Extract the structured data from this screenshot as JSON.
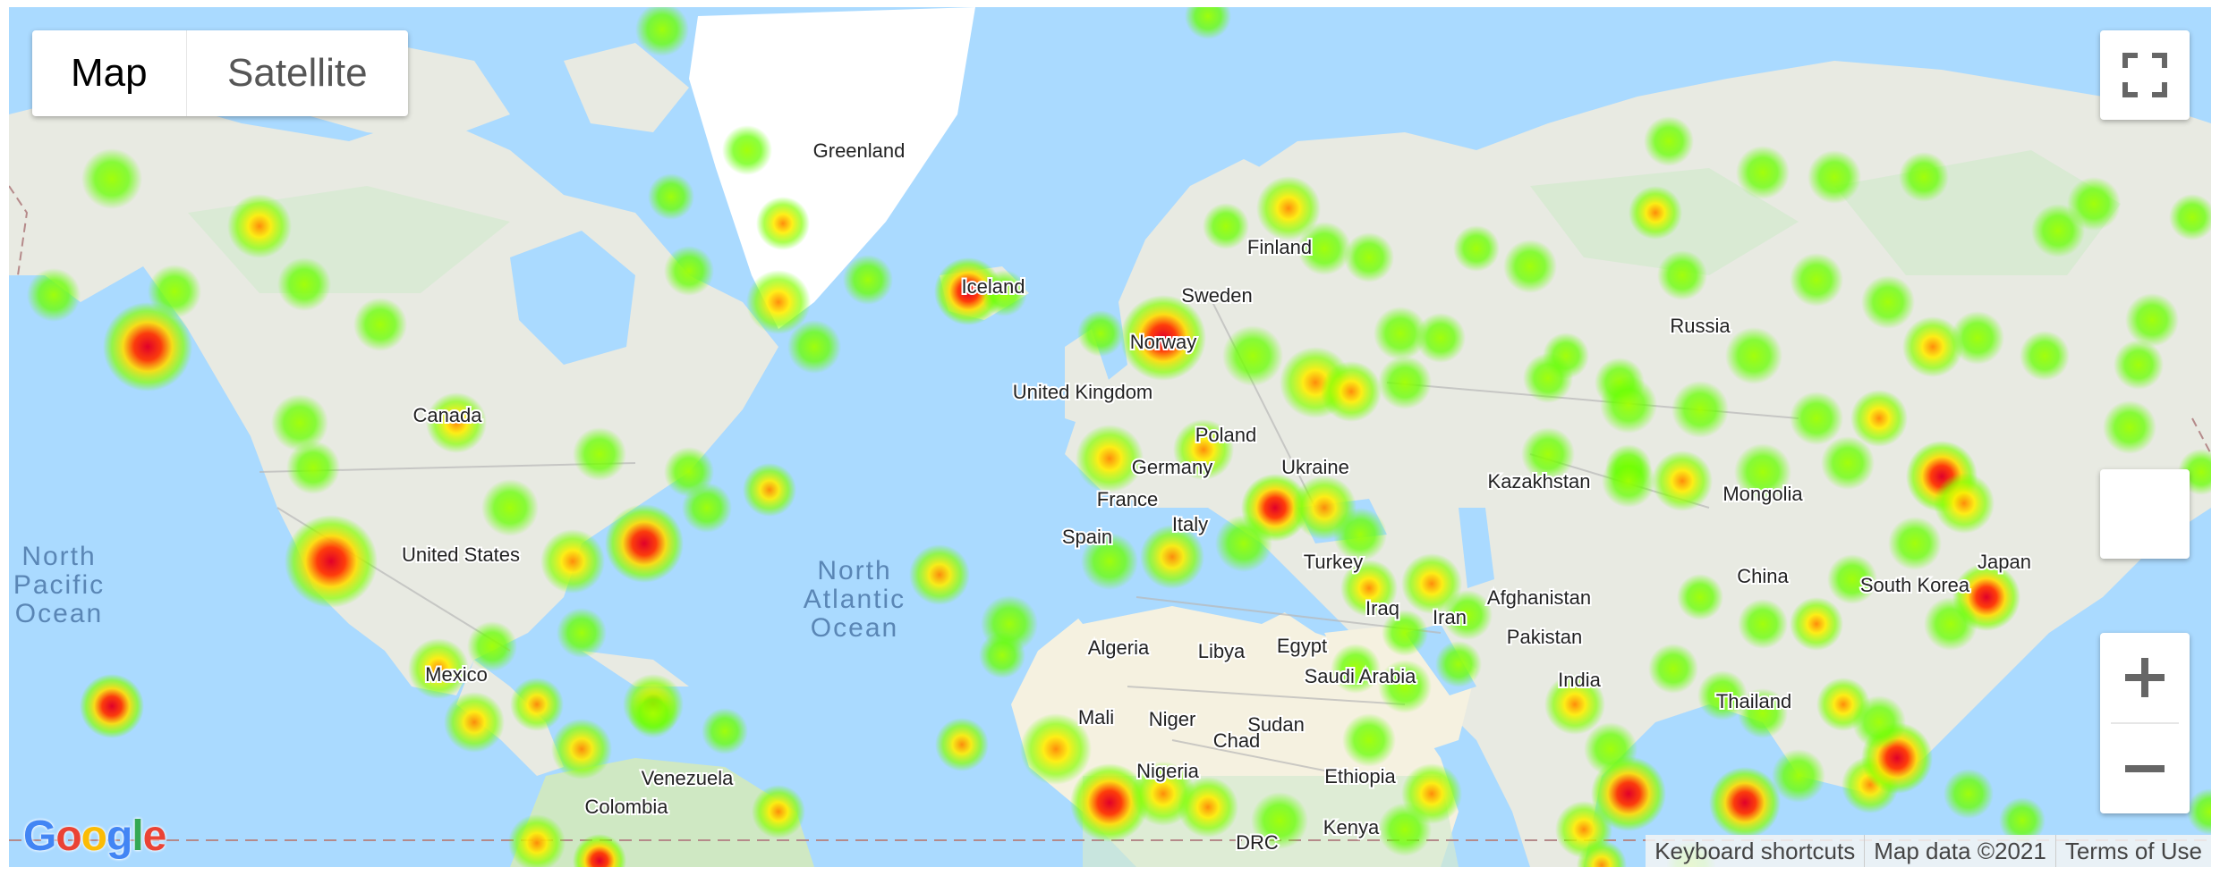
{
  "map_type": {
    "options": [
      "Map",
      "Satellite"
    ],
    "selected": "Map"
  },
  "labels": {
    "countries": [
      "Greenland",
      "Iceland",
      "Finland",
      "Sweden",
      "Norway",
      "United Kingdom",
      "Russia",
      "Canada",
      "Poland",
      "Germany",
      "Ukraine",
      "France",
      "Italy",
      "Spain",
      "Kazakhstan",
      "Mongolia",
      "United States",
      "Turkey",
      "China",
      "Japan",
      "South Korea",
      "Iraq",
      "Iran",
      "Afghanistan",
      "Pakistan",
      "Algeria",
      "Libya",
      "Egypt",
      "Saudi Arabia",
      "India",
      "Mexico",
      "Mali",
      "Niger",
      "Chad",
      "Sudan",
      "Thailand",
      "Nigeria",
      "Ethiopia",
      "Venezuela",
      "Colombia",
      "Kenya",
      "DRC"
    ],
    "oceans": {
      "north_pacific": [
        "North",
        "Pacific",
        "Ocean"
      ],
      "north_atlantic": [
        "North",
        "Atlantic",
        "Ocean"
      ]
    }
  },
  "footer": {
    "keyboard": "Keyboard shortcuts",
    "map_data": "Map data ©2021",
    "terms": "Terms of Use"
  },
  "logo_text": "Google",
  "heatmap": {
    "description": "weighted heat layer over city locations",
    "colors": {
      "low": "#66ff00",
      "mid": "#ffff00",
      "high": "#ff0000"
    }
  },
  "colors": {
    "water": "#aadaff",
    "land": "#e8eae2",
    "green_land": "#cfe8c3",
    "greenland_ice": "#ffffff"
  }
}
